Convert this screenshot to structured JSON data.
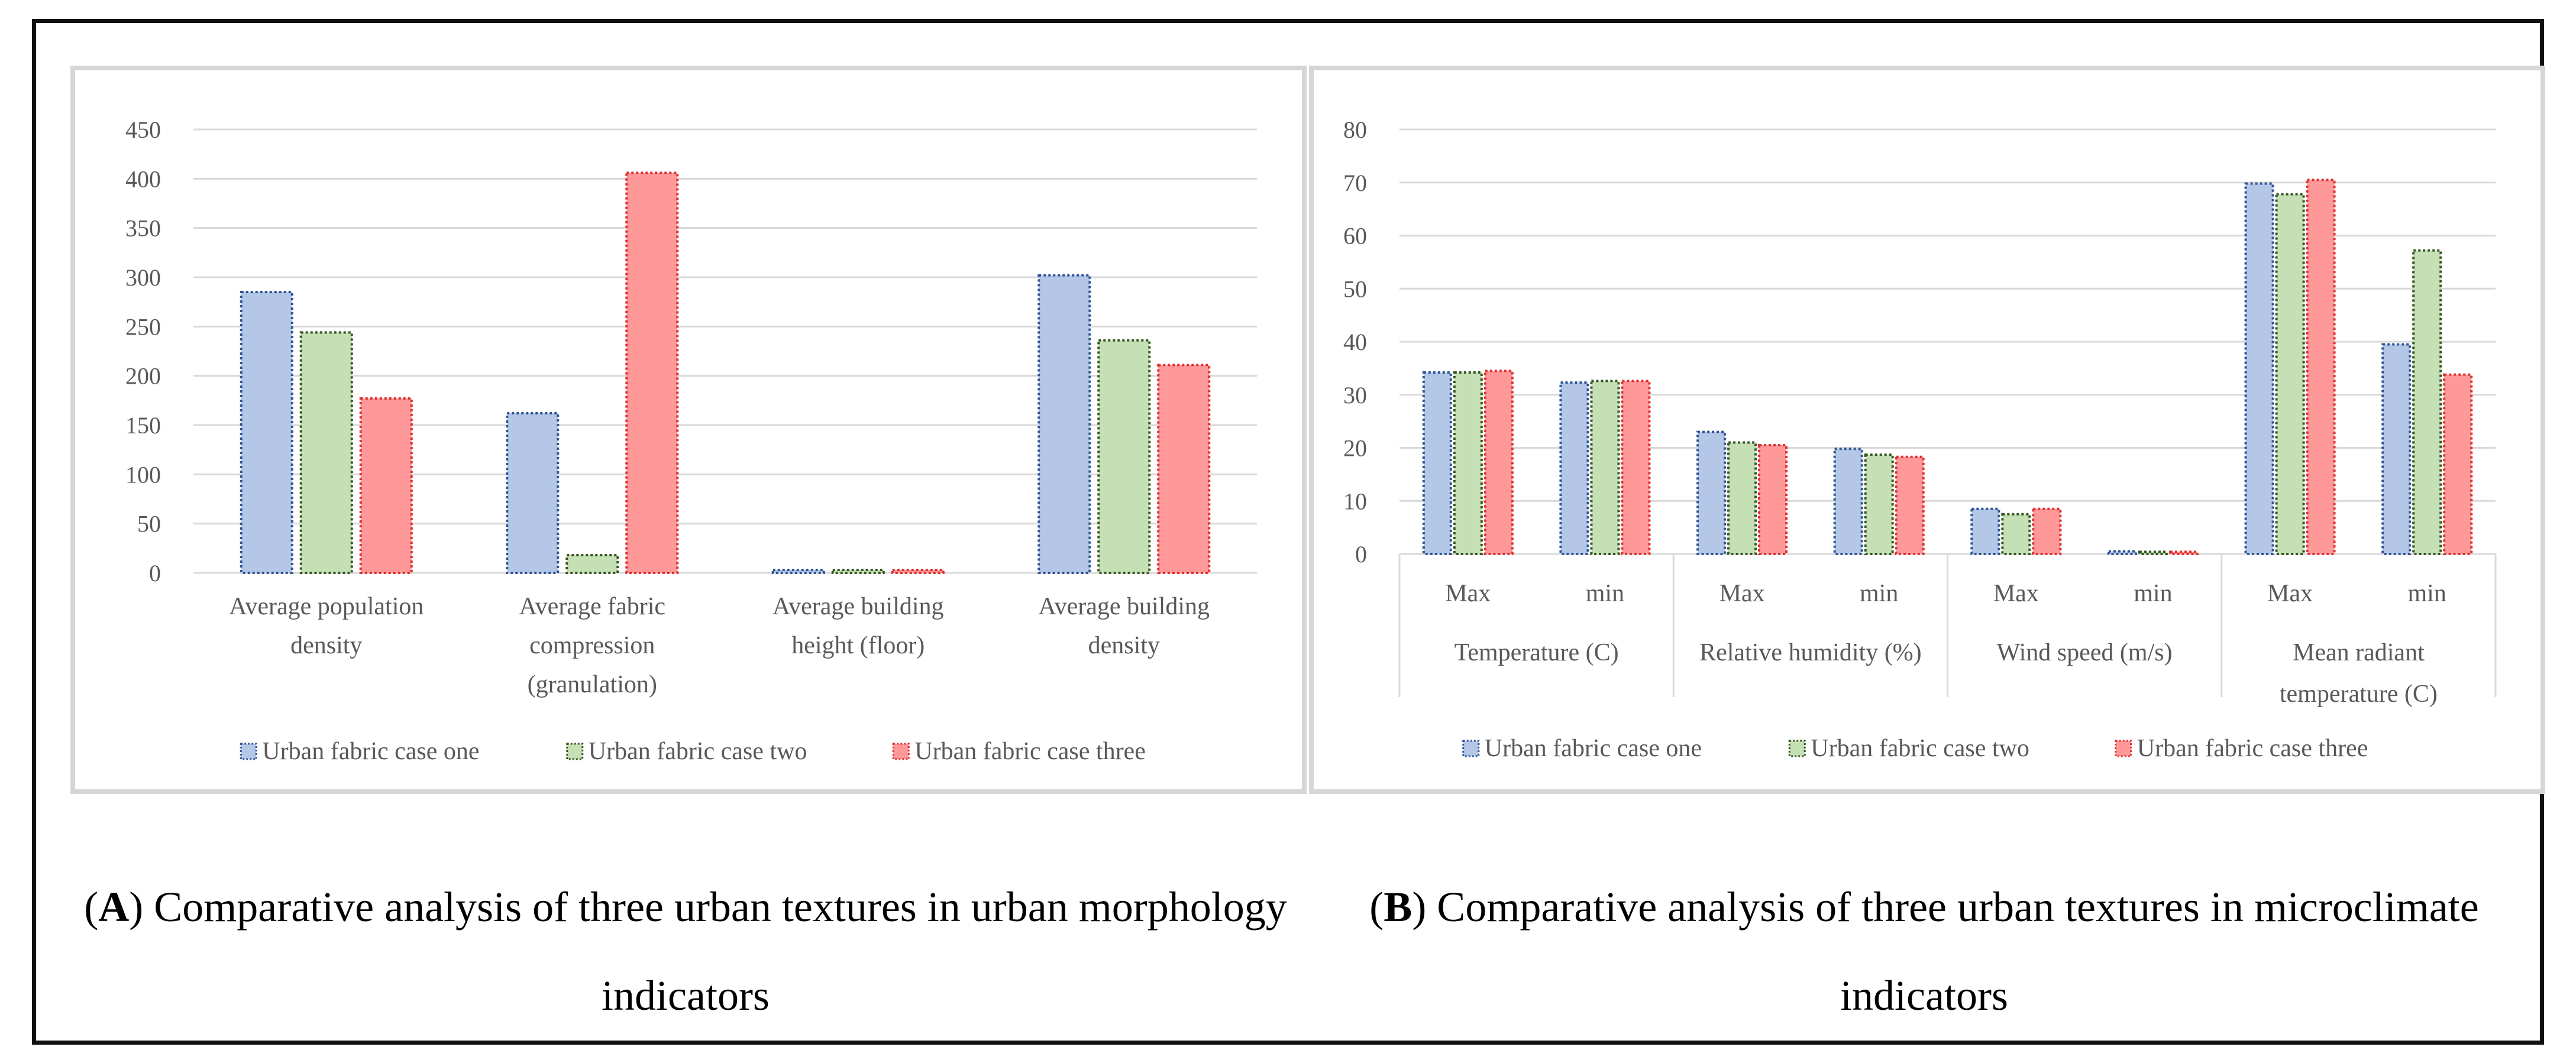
{
  "colors": {
    "series": [
      "#b4c7e7",
      "#c5e0b4",
      "#ff9999"
    ],
    "series_edge": [
      "#2f5597",
      "#375623",
      "#e03030"
    ],
    "grid": "#d9d9d9",
    "axis_text": "#595959"
  },
  "captions": {
    "a": {
      "letter": "A",
      "text": " Comparative analysis of three urban textures in urban morphology indicators"
    },
    "b": {
      "letter": "B",
      "text": " Comparative analysis of three urban textures in microclimate indicators"
    }
  },
  "chart_data": [
    {
      "type": "bar",
      "title": "",
      "xlabel": "",
      "ylabel": "",
      "ylim": [
        0,
        450
      ],
      "yticks": [
        "0",
        "50",
        "100",
        "150",
        "200",
        "250",
        "300",
        "350",
        "400",
        "450"
      ],
      "categories": [
        [
          "Average population",
          "density"
        ],
        [
          "Average fabric",
          "compression",
          "(granulation)"
        ],
        [
          "Average building",
          "height (floor)"
        ],
        [
          "Average building",
          "density"
        ]
      ],
      "series": [
        {
          "name": "Urban fabric case one",
          "values": [
            285,
            162,
            3,
            302
          ]
        },
        {
          "name": "Urban fabric case two",
          "values": [
            244,
            18,
            3,
            236
          ]
        },
        {
          "name": "Urban fabric case three",
          "values": [
            177,
            406,
            3,
            211
          ]
        }
      ],
      "grid": true,
      "legend": "bottom"
    },
    {
      "type": "bar",
      "title": "",
      "xlabel": "",
      "ylabel": "",
      "ylim": [
        0,
        80
      ],
      "yticks": [
        "0",
        "10",
        "20",
        "30",
        "40",
        "50",
        "60",
        "70",
        "80"
      ],
      "categories": [
        "Max",
        "min",
        "Max",
        "min",
        "Max",
        "min",
        "Max",
        "min"
      ],
      "groups": [
        [
          "Temperature (C)"
        ],
        [
          "Relative humidity (%)"
        ],
        [
          "Wind speed (m/s)"
        ],
        [
          "Mean radiant",
          "temperature (C)"
        ]
      ],
      "series": [
        {
          "name": "Urban fabric case one",
          "values": [
            34.2,
            32.3,
            23.0,
            19.8,
            8.5,
            0.5,
            69.8,
            39.5
          ]
        },
        {
          "name": "Urban fabric case two",
          "values": [
            34.2,
            32.6,
            21.0,
            18.7,
            7.5,
            0.4,
            67.8,
            57.2
          ]
        },
        {
          "name": "Urban fabric case three",
          "values": [
            34.5,
            32.6,
            20.5,
            18.3,
            8.5,
            0.4,
            70.5,
            33.8
          ]
        }
      ],
      "grid": true,
      "legend": "bottom"
    }
  ]
}
